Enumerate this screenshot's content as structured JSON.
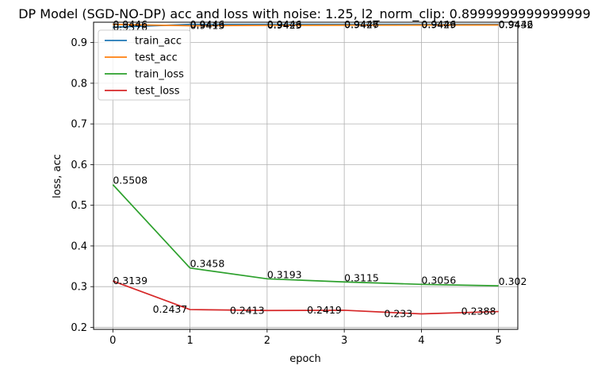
{
  "chart_data": {
    "type": "line",
    "title": "DP Model (SGD-NO-DP) acc and loss with noise: 1.25, l2_norm_clip: 0.8999999999999999",
    "xlabel": "epoch",
    "ylabel": "loss, acc",
    "x": [
      0,
      1,
      2,
      3,
      4,
      5
    ],
    "xlim": [
      -0.25,
      5.25
    ],
    "ylim": [
      0.195,
      0.95
    ],
    "xticks": [
      0,
      1,
      2,
      3,
      4,
      5
    ],
    "xtick_labels": [
      "0",
      "1",
      "2",
      "3",
      "4",
      "5"
    ],
    "yticks": [
      0.2,
      0.3,
      0.4,
      0.5,
      0.6,
      0.7,
      0.8,
      0.9
    ],
    "ytick_labels": [
      "0.2",
      "0.3",
      "0.4",
      "0.5",
      "0.6",
      "0.7",
      "0.8",
      "0.9"
    ],
    "grid": true,
    "legend_position": "upper-left",
    "series": [
      {
        "name": "train_acc",
        "color": "#1f77b4",
        "values": [
          0.9376,
          0.9446,
          0.9446,
          0.9446,
          0.9446,
          0.9446
        ],
        "labels": [
          "0.9376",
          "0.9446",
          "0.9446",
          "0.9446",
          "0.9446",
          "0.9446"
        ]
      },
      {
        "name": "test_acc",
        "color": "#ff7f0e",
        "values": [
          0.9446,
          0.9413,
          0.9423,
          0.9427,
          0.9429,
          0.9432
        ],
        "labels": [
          "0.9446",
          "0.9413",
          "0.9423",
          "0.9427",
          "0.9429",
          "0.9432"
        ]
      },
      {
        "name": "train_loss",
        "color": "#2ca02c",
        "values": [
          0.5508,
          0.3458,
          0.3193,
          0.3115,
          0.3056,
          0.302
        ],
        "labels": [
          "0.5508",
          "0.3458",
          "0.3193",
          "0.3115",
          "0.3056",
          "0.302"
        ]
      },
      {
        "name": "test_loss",
        "color": "#d62728",
        "values": [
          0.3139,
          0.2437,
          0.2413,
          0.2419,
          0.233,
          0.2388
        ],
        "labels": [
          "0.3139",
          "0.2437",
          "0.2413",
          "0.2419",
          "0.233",
          "0.2388"
        ]
      }
    ]
  }
}
